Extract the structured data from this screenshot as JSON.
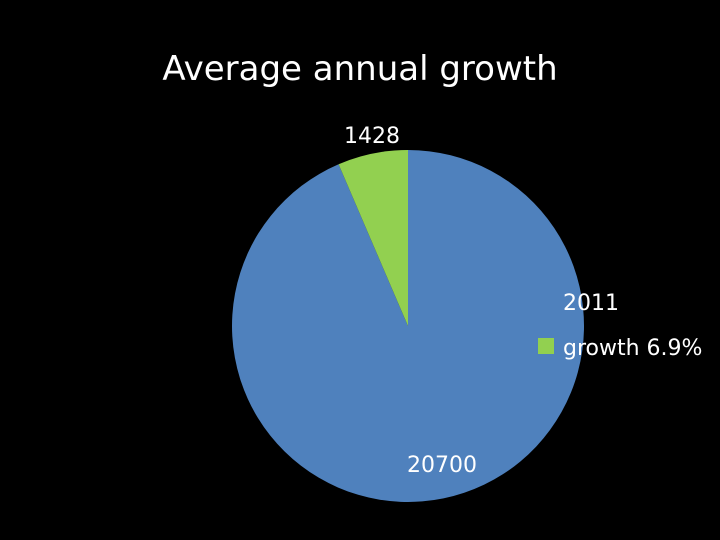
{
  "chart_data": {
    "type": "pie",
    "title": "Average annual growth",
    "slices": [
      {
        "label": "1428",
        "value": 1428,
        "color": "#92D050"
      },
      {
        "label": "20700",
        "value": 20700,
        "color": "#4F81BD"
      }
    ],
    "legend": {
      "placement": "right",
      "line1": "2011",
      "line2": "growth 6.9%",
      "swatch_color": "#92D050"
    }
  }
}
